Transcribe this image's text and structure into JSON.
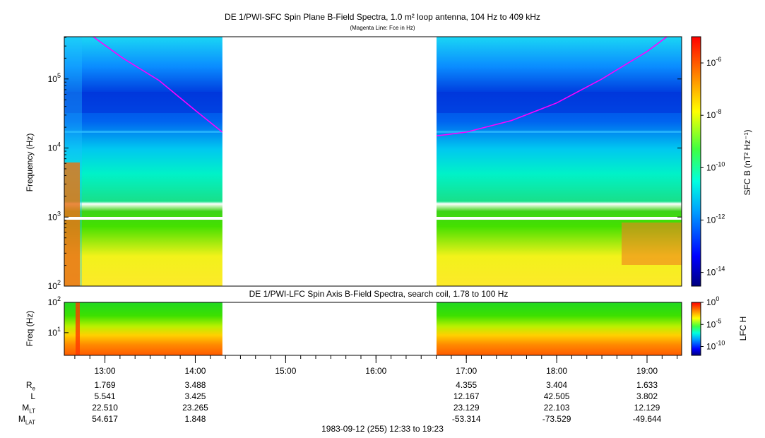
{
  "chart_data": [
    {
      "type": "heatmap",
      "title": "DE 1/PWI-SFC  Spin Plane B-Field Spectra, 1.0 m² loop antenna, 104 Hz to 409 kHz",
      "subtitle": "(Magenta Line: Fce in Hz)",
      "ylabel": "Frequency (Hz)",
      "ylim": [
        100,
        409000
      ],
      "yscale": "log",
      "yticks": [
        {
          "v": 100,
          "base": "10",
          "exp": "2"
        },
        {
          "v": 1000,
          "base": "10",
          "exp": "3"
        },
        {
          "v": 10000,
          "base": "10",
          "exp": "4"
        },
        {
          "v": 100000,
          "base": "10",
          "exp": "5"
        }
      ],
      "colorbar": {
        "label": "SFC B (nT² Hz⁻¹)",
        "scale": "log",
        "range": [
          3e-15,
          1e-05
        ],
        "ticks": [
          {
            "v": 1e-06,
            "base": "10",
            "exp": "-6"
          },
          {
            "v": 1e-08,
            "base": "10",
            "exp": "-8"
          },
          {
            "v": 1e-10,
            "base": "10",
            "exp": "-10"
          },
          {
            "v": 1e-12,
            "base": "10",
            "exp": "-12"
          },
          {
            "v": 1e-14,
            "base": "10",
            "exp": "-14"
          }
        ]
      },
      "data_gaps": [
        [
          14.3,
          16.67
        ]
      ],
      "fce_line": {
        "name": "Fce in Hz",
        "color": "#ff00ff",
        "x": [
          12.87,
          13.2,
          13.6,
          14.0,
          14.3,
          16.67,
          17.0,
          17.5,
          18.0,
          18.5,
          19.0,
          19.22
        ],
        "y": [
          409000,
          200000,
          95000,
          35000,
          17000,
          15000,
          17000,
          25000,
          45000,
          100000,
          250000,
          409000
        ]
      }
    },
    {
      "type": "heatmap",
      "title": "DE 1/PWI-LFC  Spin Axis B-Field Spectra, search coil, 1.78 to 100 Hz",
      "ylabel": "Freq (Hz)",
      "ylim": [
        1.78,
        100
      ],
      "yscale": "log",
      "yticks": [
        {
          "v": 10,
          "base": "10",
          "exp": "1"
        },
        {
          "v": 100,
          "base": "10",
          "exp": "2"
        }
      ],
      "colorbar": {
        "label": "LFC H",
        "scale": "log",
        "range": [
          1e-12,
          1
        ],
        "ticks": [
          {
            "v": 1,
            "base": "10",
            "exp": "0"
          },
          {
            "v": 1e-05,
            "base": "10",
            "exp": "-5"
          },
          {
            "v": 1e-10,
            "base": "10",
            "exp": "-10"
          }
        ]
      },
      "data_gaps": [
        [
          14.3,
          16.67
        ]
      ]
    }
  ],
  "time_axis": {
    "range": [
      12.55,
      19.383
    ],
    "ticks": [
      {
        "t": 13,
        "label": "13:00"
      },
      {
        "t": 14,
        "label": "14:00"
      },
      {
        "t": 15,
        "label": "15:00"
      },
      {
        "t": 16,
        "label": "16:00"
      },
      {
        "t": 17,
        "label": "17:00"
      },
      {
        "t": 18,
        "label": "18:00"
      },
      {
        "t": 19,
        "label": "19:00"
      }
    ]
  },
  "ephemeris": {
    "rows": [
      {
        "label": "R",
        "sub": "e",
        "values": [
          "1.769",
          "3.488",
          "",
          "",
          "4.355",
          "3.404",
          "1.633"
        ]
      },
      {
        "label": "L",
        "sub": "",
        "values": [
          "5.541",
          "3.425",
          "",
          "",
          "12.167",
          "42.505",
          "3.802"
        ]
      },
      {
        "label": "M",
        "sub": "LT",
        "values": [
          "22.510",
          "23.265",
          "",
          "",
          "23.129",
          "22.103",
          "12.129"
        ]
      },
      {
        "label": "M",
        "sub": "LAT",
        "values": [
          "54.617",
          "1.848",
          "",
          "",
          "-53.314",
          "-73.529",
          "-49.644"
        ]
      }
    ]
  },
  "footer": "1983-09-12 (255) 12:33 to 19:23"
}
